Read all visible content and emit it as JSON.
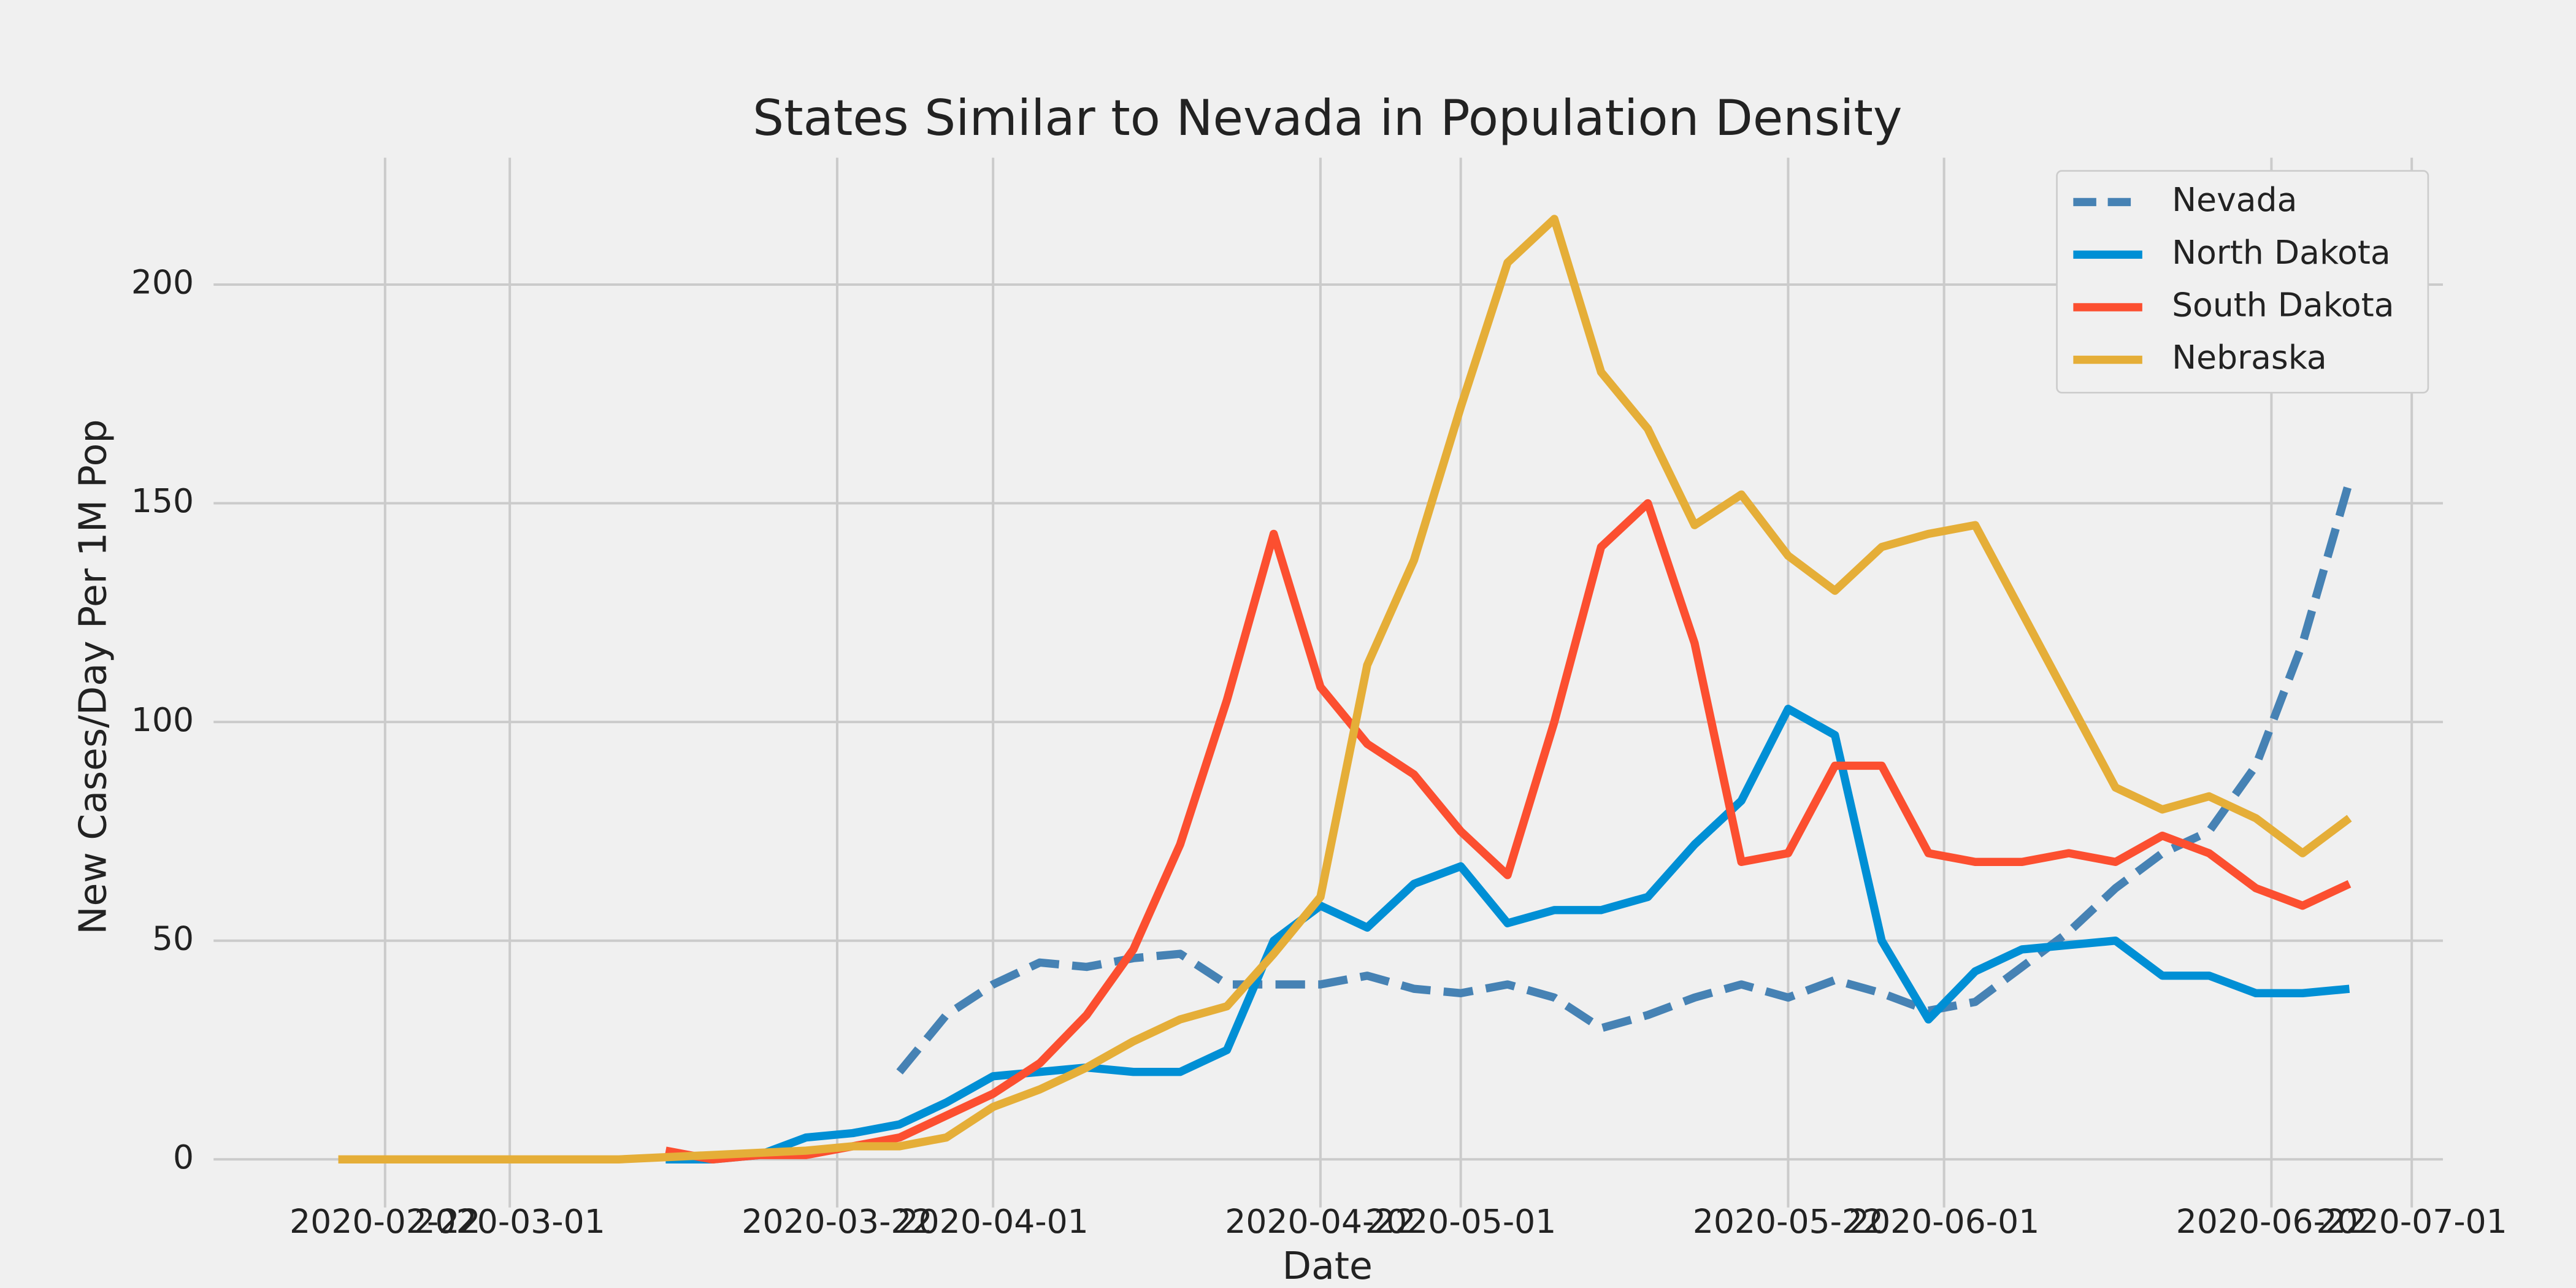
{
  "chart_data": {
    "type": "line",
    "title": "States Similar to Nevada in Population Density",
    "x_label": "Date",
    "y_label": "New Cases/Day Per 1M Pop",
    "x": [
      "2020-02-19",
      "2020-02-22",
      "2020-02-25",
      "2020-02-28",
      "2020-03-02",
      "2020-03-05",
      "2020-03-08",
      "2020-03-11",
      "2020-03-14",
      "2020-03-17",
      "2020-03-20",
      "2020-03-23",
      "2020-03-26",
      "2020-03-29",
      "2020-04-01",
      "2020-04-04",
      "2020-04-07",
      "2020-04-10",
      "2020-04-13",
      "2020-04-16",
      "2020-04-19",
      "2020-04-22",
      "2020-04-25",
      "2020-04-28",
      "2020-05-01",
      "2020-05-04",
      "2020-05-07",
      "2020-05-10",
      "2020-05-13",
      "2020-05-16",
      "2020-05-19",
      "2020-05-22",
      "2020-05-25",
      "2020-05-28",
      "2020-05-31",
      "2020-06-03",
      "2020-06-06",
      "2020-06-09",
      "2020-06-12",
      "2020-06-15",
      "2020-06-18",
      "2020-06-21",
      "2020-06-24",
      "2020-06-27"
    ],
    "series": [
      {
        "name": "Nevada",
        "color": "#4682b4",
        "dash": "dashed",
        "values": [
          null,
          null,
          null,
          null,
          null,
          null,
          null,
          null,
          null,
          null,
          null,
          null,
          20,
          33,
          40,
          45,
          44,
          46,
          47,
          40,
          40,
          40,
          42,
          39,
          38,
          40,
          37,
          30,
          33,
          37,
          40,
          37,
          41,
          38,
          34,
          36,
          44,
          52,
          62,
          70,
          75,
          90,
          118,
          155
        ]
      },
      {
        "name": "North Dakota",
        "color": "#008fd5",
        "dash": "solid",
        "values": [
          null,
          null,
          null,
          null,
          null,
          null,
          null,
          0,
          0,
          1,
          5,
          6,
          8,
          13,
          19,
          20,
          21,
          20,
          20,
          25,
          50,
          58,
          53,
          63,
          67,
          54,
          57,
          57,
          60,
          72,
          82,
          103,
          97,
          50,
          32,
          43,
          48,
          49,
          50,
          42,
          42,
          38,
          38,
          39
        ]
      },
      {
        "name": "South Dakota",
        "color": "#fc4f30",
        "dash": "solid",
        "values": [
          null,
          null,
          null,
          null,
          null,
          null,
          null,
          2,
          0,
          1,
          1,
          3,
          5,
          10,
          15,
          22,
          33,
          48,
          72,
          105,
          143,
          108,
          95,
          88,
          75,
          65,
          100,
          140,
          150,
          118,
          68,
          70,
          90,
          90,
          70,
          68,
          68,
          70,
          68,
          74,
          70,
          62,
          58,
          63
        ]
      },
      {
        "name": "Nebraska",
        "color": "#e5ae38",
        "dash": "solid",
        "values": [
          0,
          0,
          0,
          0,
          0,
          0,
          0,
          0.5,
          1,
          1.5,
          2,
          3,
          3,
          5,
          12,
          16,
          21,
          27,
          32,
          35,
          47,
          60,
          113,
          137,
          172,
          205,
          215,
          180,
          167,
          145,
          152,
          138,
          130,
          140,
          143,
          145,
          125,
          105,
          85,
          80,
          83,
          78,
          70,
          78
        ]
      }
    ],
    "xlim": [
      "2020-02-11",
      "2020-07-03"
    ],
    "xticks": [
      "2020-02-22",
      "2020-03-01",
      "2020-03-22",
      "2020-04-01",
      "2020-04-22",
      "2020-05-01",
      "2020-05-22",
      "2020-06-01",
      "2020-06-22",
      "2020-07-01"
    ],
    "ylim": [
      -11,
      229
    ],
    "yticks": [
      0,
      50,
      100,
      150,
      200
    ],
    "grid": true,
    "legend": "upper-right"
  }
}
